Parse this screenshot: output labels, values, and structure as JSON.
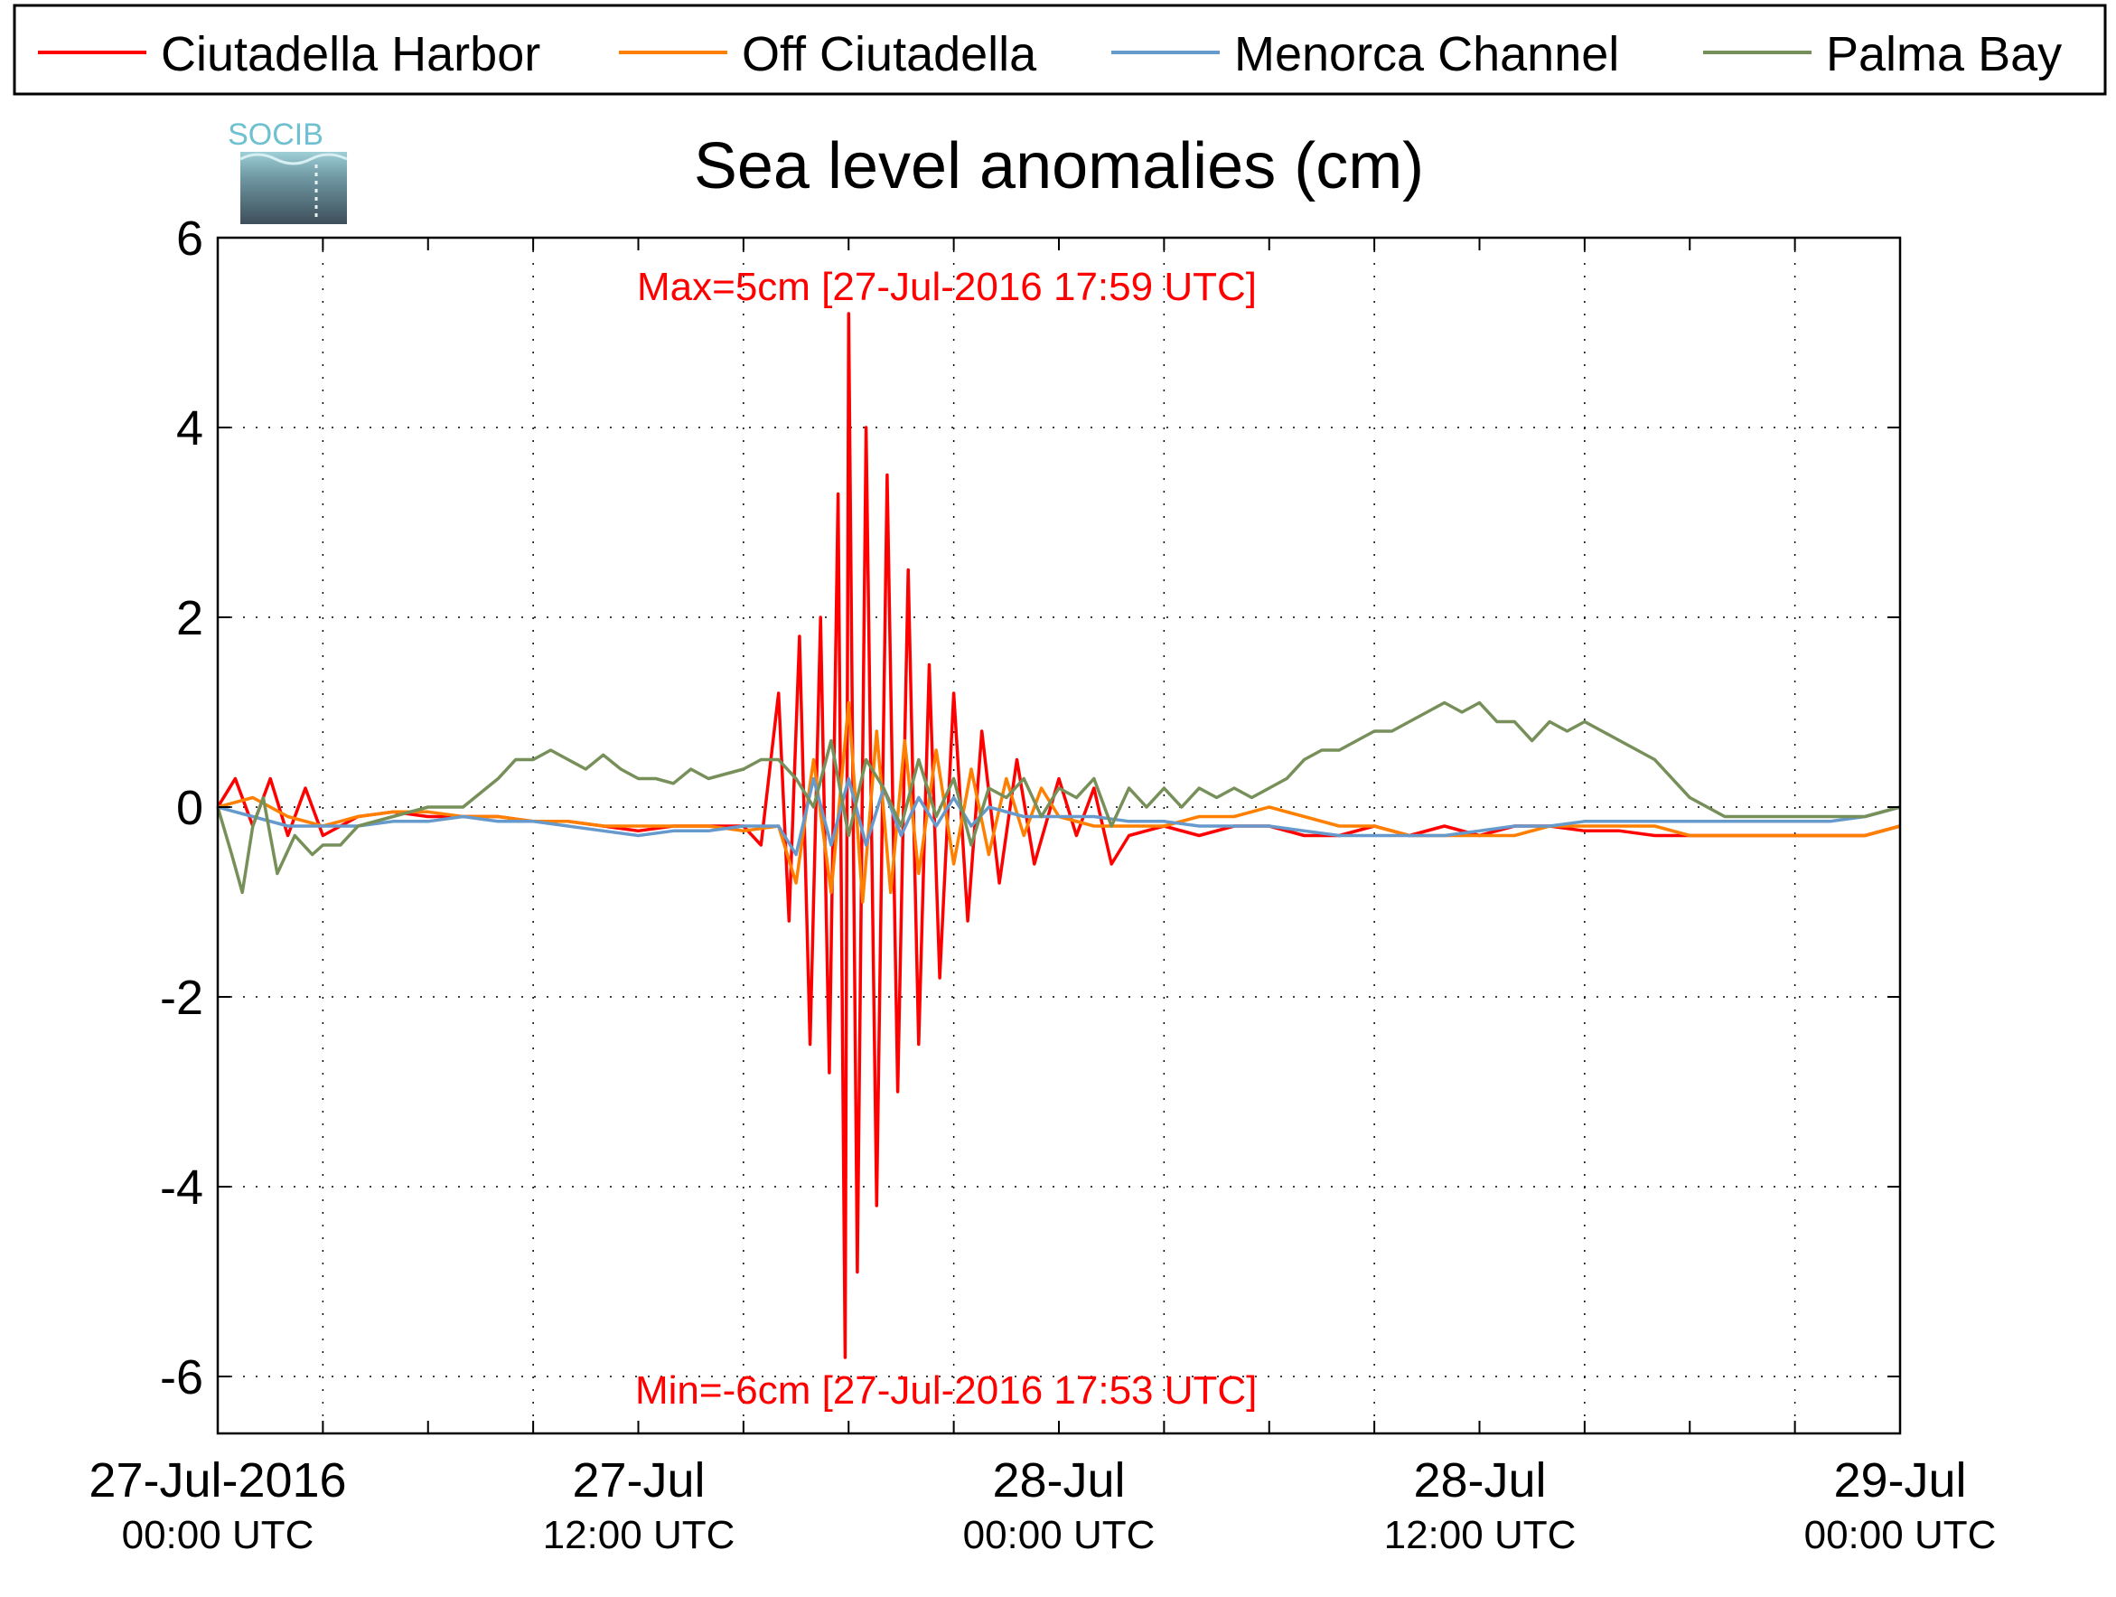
{
  "chart_data": {
    "type": "line",
    "title": "Sea level anomalies (cm)",
    "xlabel": "",
    "ylabel": "",
    "ylim": [
      -6.6,
      6
    ],
    "yticks": [
      6,
      4,
      2,
      0,
      -2,
      -4,
      -6
    ],
    "ytick_labels": [
      "6",
      "4",
      "2",
      "0",
      "-2",
      "-4",
      "-6"
    ],
    "xlim_hours": [
      0,
      48
    ],
    "xticks": [
      {
        "line1": "27-Jul-2016",
        "line2": "00:00 UTC"
      },
      {
        "line1": "27-Jul",
        "line2": "12:00 UTC"
      },
      {
        "line1": "28-Jul",
        "line2": "00:00 UTC"
      },
      {
        "line1": "28-Jul",
        "line2": "12:00 UTC"
      },
      {
        "line1": "29-Jul",
        "line2": "00:00 UTC"
      }
    ],
    "grid": true,
    "legend_position": "top",
    "logo_text": "SOCIB",
    "annotations": {
      "max": "Max=5cm [27-Jul-2016 17:59 UTC]",
      "min": "Min=-6cm [27-Jul-2016 17:53 UTC]",
      "color": "#ff0000"
    },
    "series": [
      {
        "name": "Ciutadella Harbor",
        "color": "#ff0000",
        "points": [
          [
            0,
            0.0
          ],
          [
            0.5,
            0.3
          ],
          [
            1,
            -0.2
          ],
          [
            1.5,
            0.3
          ],
          [
            2,
            -0.3
          ],
          [
            2.5,
            0.2
          ],
          [
            3,
            -0.3
          ],
          [
            4,
            -0.1
          ],
          [
            5,
            -0.05
          ],
          [
            6,
            -0.1
          ],
          [
            7,
            -0.1
          ],
          [
            8,
            -0.1
          ],
          [
            9,
            -0.15
          ],
          [
            10,
            -0.15
          ],
          [
            11,
            -0.2
          ],
          [
            12,
            -0.25
          ],
          [
            13,
            -0.2
          ],
          [
            14,
            -0.2
          ],
          [
            15,
            -0.2
          ],
          [
            15.5,
            -0.4
          ],
          [
            16,
            1.2
          ],
          [
            16.3,
            -1.2
          ],
          [
            16.6,
            1.8
          ],
          [
            16.9,
            -2.5
          ],
          [
            17.2,
            2.0
          ],
          [
            17.45,
            -2.8
          ],
          [
            17.7,
            3.3
          ],
          [
            17.9,
            -5.8
          ],
          [
            18.0,
            5.2
          ],
          [
            18.25,
            -4.9
          ],
          [
            18.5,
            4.0
          ],
          [
            18.8,
            -4.2
          ],
          [
            19.1,
            3.5
          ],
          [
            19.4,
            -3.0
          ],
          [
            19.7,
            2.5
          ],
          [
            20.0,
            -2.5
          ],
          [
            20.3,
            1.5
          ],
          [
            20.6,
            -1.8
          ],
          [
            21.0,
            1.2
          ],
          [
            21.4,
            -1.2
          ],
          [
            21.8,
            0.8
          ],
          [
            22.3,
            -0.8
          ],
          [
            22.8,
            0.5
          ],
          [
            23.3,
            -0.6
          ],
          [
            24,
            0.3
          ],
          [
            24.5,
            -0.3
          ],
          [
            25,
            0.2
          ],
          [
            25.5,
            -0.6
          ],
          [
            26,
            -0.3
          ],
          [
            27,
            -0.2
          ],
          [
            28,
            -0.3
          ],
          [
            29,
            -0.2
          ],
          [
            30,
            -0.2
          ],
          [
            31,
            -0.3
          ],
          [
            32,
            -0.3
          ],
          [
            33,
            -0.2
          ],
          [
            34,
            -0.3
          ],
          [
            35,
            -0.2
          ],
          [
            36,
            -0.3
          ],
          [
            37,
            -0.2
          ],
          [
            38,
            -0.2
          ],
          [
            39,
            -0.25
          ],
          [
            40,
            -0.25
          ],
          [
            41,
            -0.3
          ],
          [
            42,
            -0.3
          ],
          [
            43,
            -0.3
          ],
          [
            44,
            -0.3
          ],
          [
            45,
            -0.3
          ],
          [
            46,
            -0.3
          ],
          [
            47,
            -0.3
          ],
          [
            48,
            -0.2
          ]
        ]
      },
      {
        "name": "Off Ciutadella",
        "color": "#ff8000",
        "points": [
          [
            0,
            0.0
          ],
          [
            1,
            0.1
          ],
          [
            2,
            -0.1
          ],
          [
            3,
            -0.2
          ],
          [
            4,
            -0.1
          ],
          [
            5,
            -0.05
          ],
          [
            6,
            -0.05
          ],
          [
            7,
            -0.1
          ],
          [
            8,
            -0.1
          ],
          [
            9,
            -0.15
          ],
          [
            10,
            -0.15
          ],
          [
            11,
            -0.2
          ],
          [
            12,
            -0.2
          ],
          [
            13,
            -0.2
          ],
          [
            14,
            -0.2
          ],
          [
            15,
            -0.25
          ],
          [
            16,
            -0.2
          ],
          [
            16.5,
            -0.8
          ],
          [
            17,
            0.5
          ],
          [
            17.5,
            -0.9
          ],
          [
            18,
            1.1
          ],
          [
            18.4,
            -1.0
          ],
          [
            18.8,
            0.8
          ],
          [
            19.2,
            -0.9
          ],
          [
            19.6,
            0.7
          ],
          [
            20,
            -0.7
          ],
          [
            20.5,
            0.6
          ],
          [
            21,
            -0.6
          ],
          [
            21.5,
            0.4
          ],
          [
            22,
            -0.5
          ],
          [
            22.5,
            0.3
          ],
          [
            23,
            -0.3
          ],
          [
            23.5,
            0.2
          ],
          [
            24,
            -0.1
          ],
          [
            25,
            -0.2
          ],
          [
            26,
            -0.2
          ],
          [
            27,
            -0.2
          ],
          [
            28,
            -0.1
          ],
          [
            29,
            -0.1
          ],
          [
            30,
            0.0
          ],
          [
            31,
            -0.1
          ],
          [
            32,
            -0.2
          ],
          [
            33,
            -0.2
          ],
          [
            34,
            -0.3
          ],
          [
            35,
            -0.3
          ],
          [
            36,
            -0.3
          ],
          [
            37,
            -0.3
          ],
          [
            38,
            -0.2
          ],
          [
            39,
            -0.2
          ],
          [
            40,
            -0.2
          ],
          [
            41,
            -0.2
          ],
          [
            42,
            -0.3
          ],
          [
            43,
            -0.3
          ],
          [
            44,
            -0.3
          ],
          [
            45,
            -0.3
          ],
          [
            46,
            -0.3
          ],
          [
            47,
            -0.3
          ],
          [
            48,
            -0.2
          ]
        ]
      },
      {
        "name": "Menorca Channel",
        "color": "#6699cc",
        "points": [
          [
            0,
            0.0
          ],
          [
            1,
            -0.1
          ],
          [
            2,
            -0.2
          ],
          [
            3,
            -0.2
          ],
          [
            4,
            -0.2
          ],
          [
            5,
            -0.15
          ],
          [
            6,
            -0.15
          ],
          [
            7,
            -0.1
          ],
          [
            8,
            -0.15
          ],
          [
            9,
            -0.15
          ],
          [
            10,
            -0.2
          ],
          [
            11,
            -0.25
          ],
          [
            12,
            -0.3
          ],
          [
            13,
            -0.25
          ],
          [
            14,
            -0.25
          ],
          [
            15,
            -0.2
          ],
          [
            16,
            -0.2
          ],
          [
            16.5,
            -0.5
          ],
          [
            17,
            0.3
          ],
          [
            17.5,
            -0.4
          ],
          [
            18,
            0.3
          ],
          [
            18.5,
            -0.4
          ],
          [
            19,
            0.2
          ],
          [
            19.5,
            -0.3
          ],
          [
            20,
            0.1
          ],
          [
            20.5,
            -0.2
          ],
          [
            21,
            0.1
          ],
          [
            21.5,
            -0.2
          ],
          [
            22,
            0.0
          ],
          [
            23,
            -0.1
          ],
          [
            24,
            -0.1
          ],
          [
            25,
            -0.1
          ],
          [
            26,
            -0.15
          ],
          [
            27,
            -0.15
          ],
          [
            28,
            -0.2
          ],
          [
            29,
            -0.2
          ],
          [
            30,
            -0.2
          ],
          [
            31,
            -0.25
          ],
          [
            32,
            -0.3
          ],
          [
            33,
            -0.3
          ],
          [
            34,
            -0.3
          ],
          [
            35,
            -0.3
          ],
          [
            36,
            -0.25
          ],
          [
            37,
            -0.2
          ],
          [
            38,
            -0.2
          ],
          [
            39,
            -0.15
          ],
          [
            40,
            -0.15
          ],
          [
            41,
            -0.15
          ],
          [
            42,
            -0.15
          ],
          [
            43,
            -0.15
          ],
          [
            44,
            -0.15
          ],
          [
            45,
            -0.15
          ],
          [
            46,
            -0.15
          ],
          [
            47,
            -0.1
          ],
          [
            48,
            0.0
          ]
        ]
      },
      {
        "name": "Palma Bay",
        "color": "#77905a",
        "points": [
          [
            0,
            0.0
          ],
          [
            0.4,
            -0.5
          ],
          [
            0.7,
            -0.9
          ],
          [
            1,
            -0.2
          ],
          [
            1.3,
            0.1
          ],
          [
            1.7,
            -0.7
          ],
          [
            2.2,
            -0.3
          ],
          [
            2.7,
            -0.5
          ],
          [
            3,
            -0.4
          ],
          [
            3.5,
            -0.4
          ],
          [
            4,
            -0.2
          ],
          [
            5,
            -0.1
          ],
          [
            6,
            0.0
          ],
          [
            7,
            0.0
          ],
          [
            8,
            0.3
          ],
          [
            8.5,
            0.5
          ],
          [
            9,
            0.5
          ],
          [
            9.5,
            0.6
          ],
          [
            10,
            0.5
          ],
          [
            10.5,
            0.4
          ],
          [
            11,
            0.55
          ],
          [
            11.5,
            0.4
          ],
          [
            12,
            0.3
          ],
          [
            12.5,
            0.3
          ],
          [
            13,
            0.25
          ],
          [
            13.5,
            0.4
          ],
          [
            14,
            0.3
          ],
          [
            15,
            0.4
          ],
          [
            15.5,
            0.5
          ],
          [
            16,
            0.5
          ],
          [
            16.5,
            0.3
          ],
          [
            17,
            0.0
          ],
          [
            17.5,
            0.7
          ],
          [
            18,
            -0.3
          ],
          [
            18.5,
            0.5
          ],
          [
            19,
            0.2
          ],
          [
            19.5,
            -0.2
          ],
          [
            20,
            0.5
          ],
          [
            20.5,
            -0.1
          ],
          [
            21,
            0.3
          ],
          [
            21.5,
            -0.4
          ],
          [
            22,
            0.2
          ],
          [
            22.5,
            0.1
          ],
          [
            23,
            0.3
          ],
          [
            23.5,
            -0.1
          ],
          [
            24,
            0.2
          ],
          [
            24.5,
            0.1
          ],
          [
            25,
            0.3
          ],
          [
            25.5,
            -0.2
          ],
          [
            26,
            0.2
          ],
          [
            26.5,
            0.0
          ],
          [
            27,
            0.2
          ],
          [
            27.5,
            0.0
          ],
          [
            28,
            0.2
          ],
          [
            28.5,
            0.1
          ],
          [
            29,
            0.2
          ],
          [
            29.5,
            0.1
          ],
          [
            30,
            0.2
          ],
          [
            30.5,
            0.3
          ],
          [
            31,
            0.5
          ],
          [
            31.5,
            0.6
          ],
          [
            32,
            0.6
          ],
          [
            32.5,
            0.7
          ],
          [
            33,
            0.8
          ],
          [
            33.5,
            0.8
          ],
          [
            34,
            0.9
          ],
          [
            34.5,
            1.0
          ],
          [
            35,
            1.1
          ],
          [
            35.5,
            1.0
          ],
          [
            36,
            1.1
          ],
          [
            36.5,
            0.9
          ],
          [
            37,
            0.9
          ],
          [
            37.5,
            0.7
          ],
          [
            38,
            0.9
          ],
          [
            38.5,
            0.8
          ],
          [
            39,
            0.9
          ],
          [
            39.5,
            0.8
          ],
          [
            40,
            0.7
          ],
          [
            40.5,
            0.6
          ],
          [
            41,
            0.5
          ],
          [
            41.5,
            0.3
          ],
          [
            42,
            0.1
          ],
          [
            43,
            -0.1
          ],
          [
            44,
            -0.1
          ],
          [
            45,
            -0.1
          ],
          [
            46,
            -0.1
          ],
          [
            47,
            -0.1
          ],
          [
            48,
            0.0
          ]
        ]
      }
    ]
  }
}
